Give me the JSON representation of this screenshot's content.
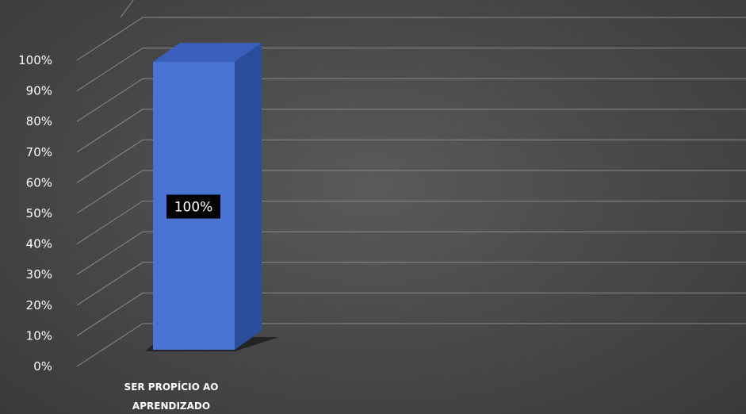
{
  "chart_data": {
    "type": "bar",
    "categories": [
      "SER PROPÍCIO AO APRENDIZADO"
    ],
    "category_lines": [
      [
        "SER PROPÍCIO AO",
        "APRENDIZADO"
      ]
    ],
    "values": [
      100
    ],
    "data_labels": [
      "100%"
    ],
    "yticks": [
      0,
      10,
      20,
      30,
      40,
      50,
      60,
      70,
      80,
      90,
      100
    ],
    "ytick_labels": [
      "0%",
      "10%",
      "20%",
      "30%",
      "40%",
      "50%",
      "60%",
      "70%",
      "80%",
      "90%",
      "100%"
    ],
    "ylim": [
      0,
      100
    ],
    "grid": true,
    "three_d": true,
    "colors": {
      "bar_front": "#4a74d4",
      "bar_side": "#2c4d9c",
      "bar_top": "#3a5fba",
      "grid": "#8a8a8a",
      "text": "#ffffff",
      "label_bg": "#000000"
    }
  }
}
